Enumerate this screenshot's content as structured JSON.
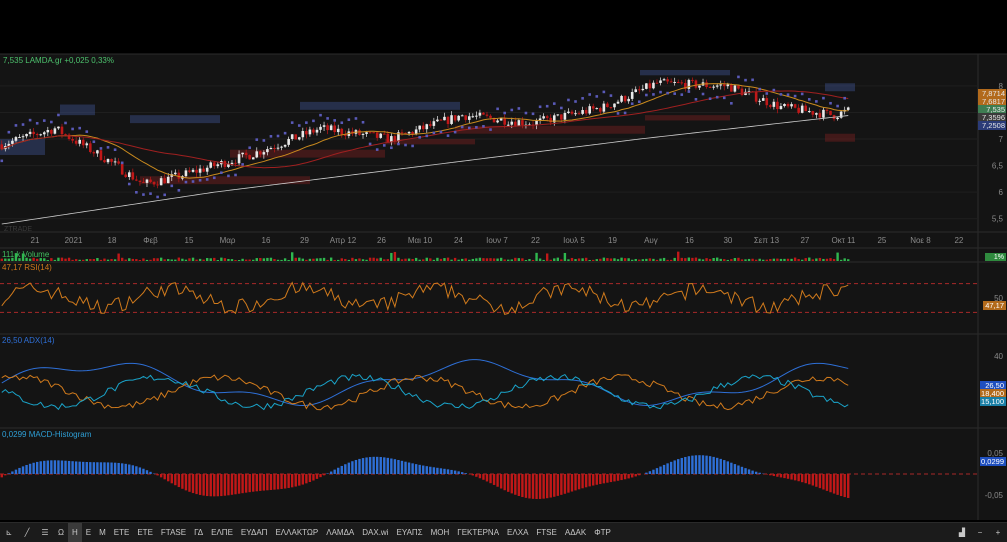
{
  "header": {
    "ticker_line": "7,535 LAMDA.gr +0,025 0,33%"
  },
  "panes": {
    "price": {
      "yticks": [
        "8",
        "7,5",
        "7",
        "6,5",
        "6",
        "5,5"
      ],
      "price_tags": [
        {
          "text": "7,8714",
          "color": "#b26a1c"
        },
        {
          "text": "7,6817",
          "color": "#b26a1c"
        },
        {
          "text": "7,535",
          "color": "#3e7d52"
        },
        {
          "text": "7,3596",
          "color": "#3a3a3a"
        },
        {
          "text": "7,2508",
          "color": "#2b3b78"
        }
      ],
      "watermark": "ZTRADE",
      "xticks": [
        "21",
        "2021",
        "18",
        "Φεβ",
        "15",
        "Μαρ",
        "16",
        "29",
        "Απρ 12",
        "26",
        "Μαι 10",
        "24",
        "Ιουν 7",
        "22",
        "Ιουλ 5",
        "19",
        "Αυγ",
        "16",
        "30",
        "Σεπ 13",
        "27",
        "Οκτ 11",
        "25",
        "Νοε 8",
        "22"
      ]
    },
    "volume": {
      "label": "111 k Volume",
      "tag": "1%"
    },
    "rsi": {
      "label": "47,17 RSI(14)",
      "yticks": [
        "50"
      ],
      "tag": "47,17"
    },
    "adx": {
      "label": "26,50 ADX(14)",
      "yticks": [
        "40",
        "20"
      ],
      "tags": [
        {
          "text": "26,50",
          "color": "#1f4fbf"
        },
        {
          "text": "18,400",
          "color": "#b26a1c"
        },
        {
          "text": "15,100",
          "color": "#1a7fa6"
        }
      ]
    },
    "macd": {
      "label": "0,0299 MACD-Histogram",
      "yticks": [
        "0,05",
        "-0,05"
      ],
      "tag": "0,0299"
    }
  },
  "toolbar": {
    "items": [
      "Ω",
      "Η",
      "Ε",
      "Μ",
      "ΕΤΕ",
      "ΕΤΕ",
      "FTASE",
      "ΓΔ",
      "ΕΛΠΕ",
      "ΕΥΔΑΠ",
      "ΕΛΛΑΚΤΩΡ",
      "ΛΑΜΔΑ",
      "DAX.wi",
      "ΕΥΑΠΣ",
      "ΜΟΗ",
      "ΓΕΚΤΕΡΝΑ",
      "ΕΛΧΑ",
      "FTSE",
      "ΑΔΑΚ",
      "ΦΤΡ"
    ],
    "active_index": 1
  },
  "colors": {
    "up": "#e9e9e9",
    "down": "#c01818",
    "blue": "#2e6fd6",
    "orange": "#d07a1c",
    "purple": "#5a5ab8",
    "cyan": "#1aa3c9"
  },
  "chart_data": [
    {
      "type": "line",
      "title": "LAMDA.gr",
      "ylim": [
        5.25,
        8.3
      ],
      "n": 240,
      "close_keypoints": [
        [
          0,
          6.9
        ],
        [
          15,
          7.2
        ],
        [
          30,
          6.6
        ],
        [
          40,
          6.15
        ],
        [
          50,
          6.3
        ],
        [
          70,
          6.7
        ],
        [
          90,
          7.2
        ],
        [
          110,
          7.0
        ],
        [
          130,
          7.45
        ],
        [
          150,
          7.3
        ],
        [
          170,
          7.6
        ],
        [
          185,
          8.05
        ],
        [
          205,
          8.0
        ],
        [
          220,
          7.6
        ],
        [
          235,
          7.45
        ],
        [
          240,
          7.55
        ]
      ],
      "sma200": [
        [
          0,
          5.4
        ],
        [
          60,
          6.0
        ],
        [
          120,
          6.5
        ],
        [
          180,
          7.0
        ],
        [
          240,
          7.45
        ]
      ]
    },
    {
      "type": "bar",
      "title": "Volume",
      "value": "111 k"
    },
    {
      "type": "line",
      "title": "RSI(14)",
      "ylim": [
        0,
        100
      ],
      "last": 47.17
    },
    {
      "type": "line",
      "title": "ADX(14)",
      "ylim": [
        0,
        50
      ],
      "last": [
        26.5,
        18.4,
        15.1
      ]
    },
    {
      "type": "bar",
      "title": "MACD-Histogram",
      "ylim": [
        -0.09,
        0.08
      ],
      "last": 0.0299
    }
  ]
}
